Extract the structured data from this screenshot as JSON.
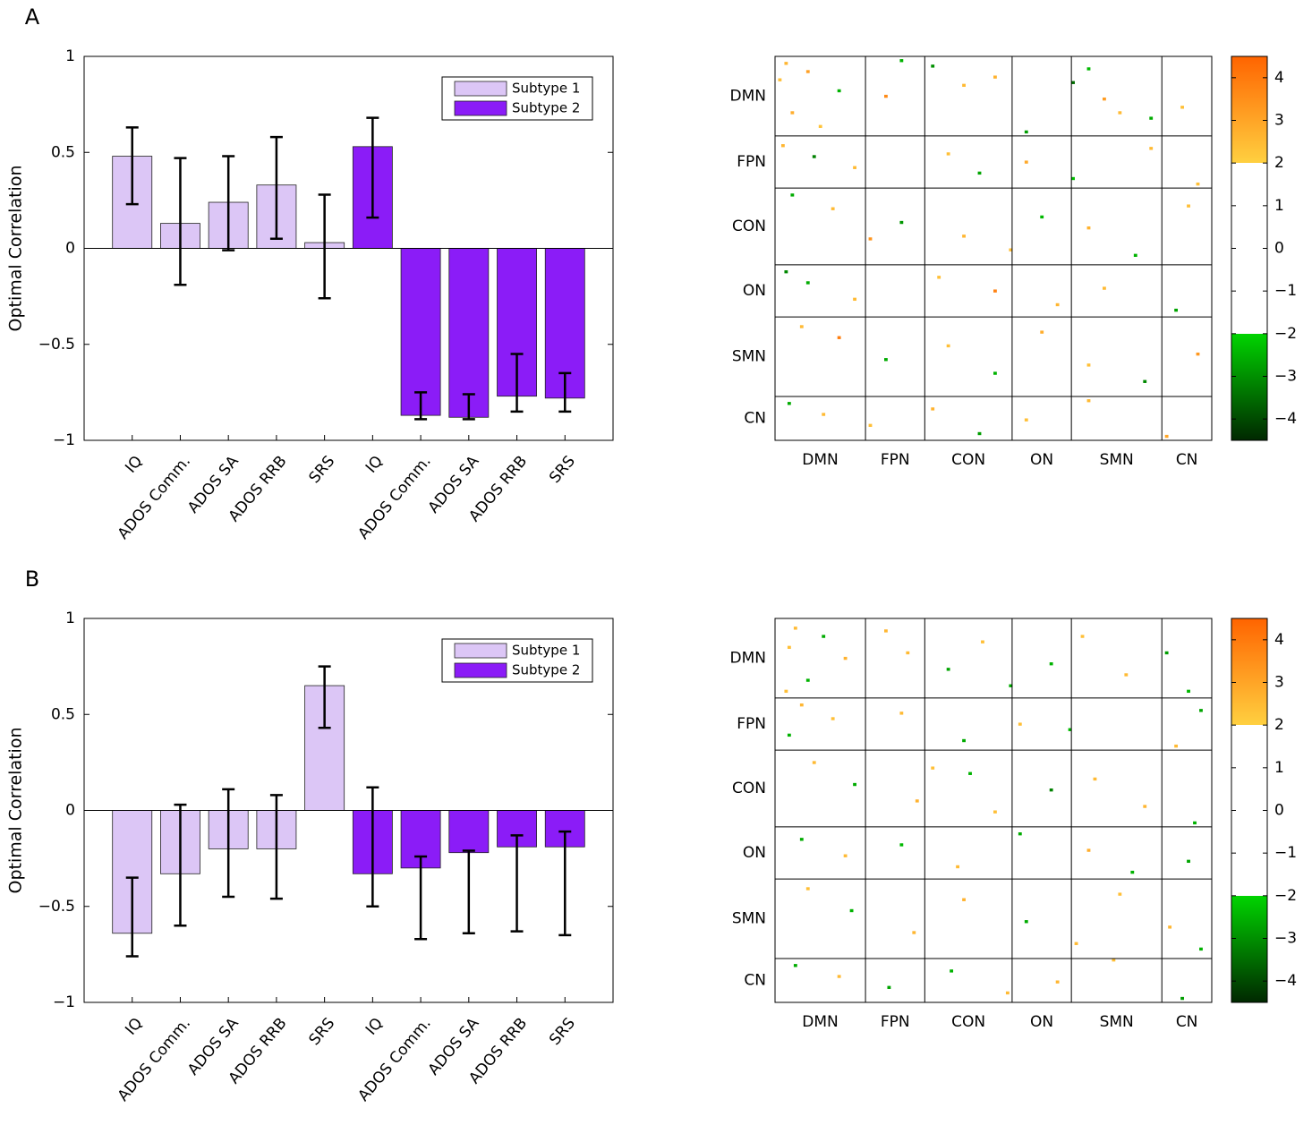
{
  "chart_data": [
    {
      "type": "bar",
      "panel_label": "A",
      "ylabel": "Optimal Correlation",
      "categories": [
        "IQ",
        "ADOS Comm.",
        "ADOS SA",
        "ADOS RRB",
        "SRS",
        "IQ",
        "ADOS Comm.",
        "ADOS SA",
        "ADOS RRB",
        "SRS"
      ],
      "series": [
        {
          "name": "Subtype 1",
          "color": "#dcc6f6",
          "values": [
            0.48,
            0.13,
            0.24,
            0.33,
            0.03,
            null,
            null,
            null,
            null,
            null
          ],
          "ci_low": [
            0.23,
            -0.19,
            -0.01,
            0.05,
            -0.26,
            null,
            null,
            null,
            null,
            null
          ],
          "ci_high": [
            0.63,
            0.47,
            0.48,
            0.58,
            0.28,
            null,
            null,
            null,
            null,
            null
          ]
        },
        {
          "name": "Subtype 2",
          "color": "#8b1cf7",
          "values": [
            null,
            null,
            null,
            null,
            null,
            0.53,
            -0.87,
            -0.88,
            -0.77,
            -0.78
          ],
          "ci_low": [
            null,
            null,
            null,
            null,
            null,
            0.16,
            -0.89,
            -0.89,
            -0.85,
            -0.85
          ],
          "ci_high": [
            null,
            null,
            null,
            null,
            null,
            0.68,
            -0.75,
            -0.76,
            -0.55,
            -0.65
          ]
        }
      ],
      "ylim": [
        -1,
        1
      ],
      "yticks": [
        {
          "value": -1,
          "label": "−1"
        },
        {
          "value": -0.5,
          "label": "−0.5"
        },
        0,
        0.5,
        1
      ],
      "legend": "upper-right",
      "grid": false
    },
    {
      "type": "heatmap",
      "networks": [
        "DMN",
        "FPN",
        "CON",
        "ON",
        "SMN",
        "CN"
      ],
      "network_sizes": [
        29,
        19,
        28,
        19,
        29,
        16
      ],
      "cells": [
        [
          2,
          3,
          2.6
        ],
        [
          5,
          10,
          3.1
        ],
        [
          8,
          1,
          2.4
        ],
        [
          12,
          20,
          -2.5
        ],
        [
          20,
          5,
          2.8
        ],
        [
          25,
          14,
          2.3
        ],
        [
          3,
          50,
          -3
        ],
        [
          10,
          60,
          2.5
        ],
        [
          7,
          70,
          2.7
        ],
        [
          4,
          100,
          -2.4
        ],
        [
          15,
          105,
          3.2
        ],
        [
          20,
          110,
          2.5
        ],
        [
          22,
          120,
          -2.6
        ],
        [
          9,
          95,
          -3.5
        ],
        [
          18,
          130,
          2.4
        ],
        [
          27,
          80,
          -2.8
        ],
        [
          1,
          40,
          -2.5
        ],
        [
          14,
          35,
          3.6
        ],
        [
          32,
          2,
          2.6
        ],
        [
          36,
          12,
          -3.2
        ],
        [
          40,
          25,
          2.5
        ],
        [
          35,
          55,
          2.4
        ],
        [
          42,
          65,
          -2.7
        ],
        [
          38,
          80,
          2.9
        ],
        [
          44,
          95,
          -2.3
        ],
        [
          33,
          120,
          2.5
        ],
        [
          46,
          135,
          2.4
        ],
        [
          50,
          5,
          -2.6
        ],
        [
          55,
          18,
          2.5
        ],
        [
          60,
          40,
          -2.9
        ],
        [
          65,
          60,
          2.6
        ],
        [
          70,
          75,
          2.4
        ],
        [
          58,
          85,
          -2.4
        ],
        [
          62,
          100,
          2.7
        ],
        [
          72,
          115,
          -2.5
        ],
        [
          54,
          132,
          2.4
        ],
        [
          66,
          30,
          3.4
        ],
        [
          78,
          3,
          -3.1
        ],
        [
          82,
          10,
          -2.6
        ],
        [
          88,
          25,
          2.5
        ],
        [
          80,
          52,
          2.4
        ],
        [
          85,
          70,
          3.8
        ],
        [
          90,
          90,
          2.6
        ],
        [
          84,
          105,
          2.5
        ],
        [
          92,
          128,
          -2.7
        ],
        [
          98,
          8,
          2.5
        ],
        [
          102,
          20,
          3.9
        ],
        [
          110,
          35,
          -2.6
        ],
        [
          105,
          55,
          2.4
        ],
        [
          115,
          70,
          -2.5
        ],
        [
          100,
          85,
          2.8
        ],
        [
          112,
          100,
          2.4
        ],
        [
          118,
          118,
          -3.1
        ],
        [
          108,
          135,
          3.3
        ],
        [
          126,
          4,
          -2.6
        ],
        [
          130,
          15,
          2.5
        ],
        [
          134,
          30,
          2.4
        ],
        [
          128,
          50,
          2.7
        ],
        [
          137,
          65,
          -2.8
        ],
        [
          132,
          80,
          2.4
        ],
        [
          125,
          100,
          2.5
        ],
        [
          138,
          125,
          3.0
        ]
      ],
      "clim": [
        -4.5,
        4.5
      ],
      "colormap": [
        [
          -4.5,
          "#002800"
        ],
        [
          -2,
          "#00d400"
        ],
        [
          -2,
          "#ffffff"
        ],
        [
          2,
          "#ffffff"
        ],
        [
          2,
          "#ffd040"
        ],
        [
          4.5,
          "#ff6400"
        ]
      ],
      "cticks": [
        {
          "value": -4,
          "label": "−4"
        },
        {
          "value": -3,
          "label": "−3"
        },
        {
          "value": -2,
          "label": "−2"
        },
        {
          "value": -1,
          "label": "−1"
        },
        0,
        1,
        2,
        3,
        4
      ]
    },
    {
      "type": "bar",
      "panel_label": "B",
      "ylabel": "Optimal Correlation",
      "categories": [
        "IQ",
        "ADOS Comm.",
        "ADOS SA",
        "ADOS RRB",
        "SRS",
        "IQ",
        "ADOS Comm.",
        "ADOS SA",
        "ADOS RRB",
        "SRS"
      ],
      "series": [
        {
          "name": "Subtype 1",
          "color": "#dcc6f6",
          "values": [
            -0.64,
            -0.33,
            -0.2,
            -0.2,
            0.65,
            null,
            null,
            null,
            null,
            null
          ],
          "ci_low": [
            -0.76,
            -0.6,
            -0.45,
            -0.46,
            0.43,
            null,
            null,
            null,
            null,
            null
          ],
          "ci_high": [
            -0.35,
            0.03,
            0.11,
            0.08,
            0.75,
            null,
            null,
            null,
            null,
            null
          ]
        },
        {
          "name": "Subtype 2",
          "color": "#8b1cf7",
          "values": [
            null,
            null,
            null,
            null,
            null,
            -0.33,
            -0.3,
            -0.22,
            -0.19,
            -0.19
          ],
          "ci_low": [
            null,
            null,
            null,
            null,
            null,
            -0.5,
            -0.67,
            -0.64,
            -0.63,
            -0.65
          ],
          "ci_high": [
            null,
            null,
            null,
            null,
            null,
            0.12,
            -0.24,
            -0.21,
            -0.13,
            -0.11
          ]
        }
      ],
      "ylim": [
        -1,
        1
      ],
      "yticks": [
        {
          "value": -1,
          "label": "−1"
        },
        {
          "value": -0.5,
          "label": "−0.5"
        },
        0,
        0.5,
        1
      ],
      "legend": "upper-right",
      "grid": false
    },
    {
      "type": "heatmap",
      "networks": [
        "DMN",
        "FPN",
        "CON",
        "ON",
        "SMN",
        "CN"
      ],
      "network_sizes": [
        29,
        19,
        28,
        19,
        29,
        16
      ],
      "cells": [
        [
          3,
          6,
          2.5
        ],
        [
          6,
          15,
          -2.6
        ],
        [
          10,
          4,
          2.4
        ],
        [
          14,
          22,
          2.7
        ],
        [
          22,
          10,
          -2.5
        ],
        [
          26,
          3,
          2.4
        ],
        [
          4,
          35,
          2.6
        ],
        [
          12,
          42,
          2.5
        ],
        [
          18,
          55,
          -2.7
        ],
        [
          8,
          66,
          2.4
        ],
        [
          24,
          75,
          -2.6
        ],
        [
          16,
          88,
          -2.5
        ],
        [
          6,
          98,
          2.4
        ],
        [
          20,
          112,
          2.5
        ],
        [
          12,
          125,
          -2.8
        ],
        [
          26,
          132,
          -2.4
        ],
        [
          31,
          8,
          2.6
        ],
        [
          36,
          18,
          2.4
        ],
        [
          42,
          4,
          -2.5
        ],
        [
          34,
          40,
          2.5
        ],
        [
          44,
          60,
          -2.6
        ],
        [
          38,
          78,
          2.4
        ],
        [
          40,
          94,
          -2.4
        ],
        [
          46,
          128,
          2.5
        ],
        [
          33,
          136,
          -2.7
        ],
        [
          52,
          12,
          2.5
        ],
        [
          60,
          25,
          -2.6
        ],
        [
          66,
          45,
          2.7
        ],
        [
          56,
          62,
          -2.5
        ],
        [
          70,
          70,
          2.4
        ],
        [
          62,
          88,
          -3.2
        ],
        [
          58,
          102,
          2.5
        ],
        [
          68,
          118,
          2.6
        ],
        [
          74,
          134,
          -2.5
        ],
        [
          54,
          50,
          2.4
        ],
        [
          80,
          8,
          -2.6
        ],
        [
          86,
          22,
          2.5
        ],
        [
          82,
          40,
          -2.4
        ],
        [
          90,
          58,
          2.5
        ],
        [
          78,
          78,
          -2.6
        ],
        [
          84,
          100,
          2.8
        ],
        [
          92,
          114,
          -2.5
        ],
        [
          88,
          132,
          -2.7
        ],
        [
          98,
          10,
          2.4
        ],
        [
          106,
          24,
          -2.5
        ],
        [
          114,
          44,
          2.6
        ],
        [
          102,
          60,
          2.7
        ],
        [
          110,
          80,
          -2.6
        ],
        [
          118,
          96,
          2.5
        ],
        [
          100,
          110,
          2.4
        ],
        [
          112,
          126,
          2.6
        ],
        [
          120,
          136,
          -2.5
        ],
        [
          126,
          6,
          -2.6
        ],
        [
          130,
          20,
          2.5
        ],
        [
          134,
          36,
          -2.7
        ],
        [
          128,
          56,
          -2.5
        ],
        [
          136,
          74,
          2.5
        ],
        [
          132,
          90,
          2.6
        ],
        [
          124,
          108,
          2.4
        ],
        [
          138,
          130,
          -2.8
        ]
      ],
      "clim": [
        -4.5,
        4.5
      ],
      "colormap": [
        [
          -4.5,
          "#002800"
        ],
        [
          -2,
          "#00d400"
        ],
        [
          -2,
          "#ffffff"
        ],
        [
          2,
          "#ffffff"
        ],
        [
          2,
          "#ffd040"
        ],
        [
          4.5,
          "#ff6400"
        ]
      ],
      "cticks": [
        {
          "value": -4,
          "label": "−4"
        },
        {
          "value": -3,
          "label": "−3"
        },
        {
          "value": -2,
          "label": "−2"
        },
        {
          "value": -1,
          "label": "−1"
        },
        0,
        1,
        2,
        3,
        4
      ]
    }
  ]
}
